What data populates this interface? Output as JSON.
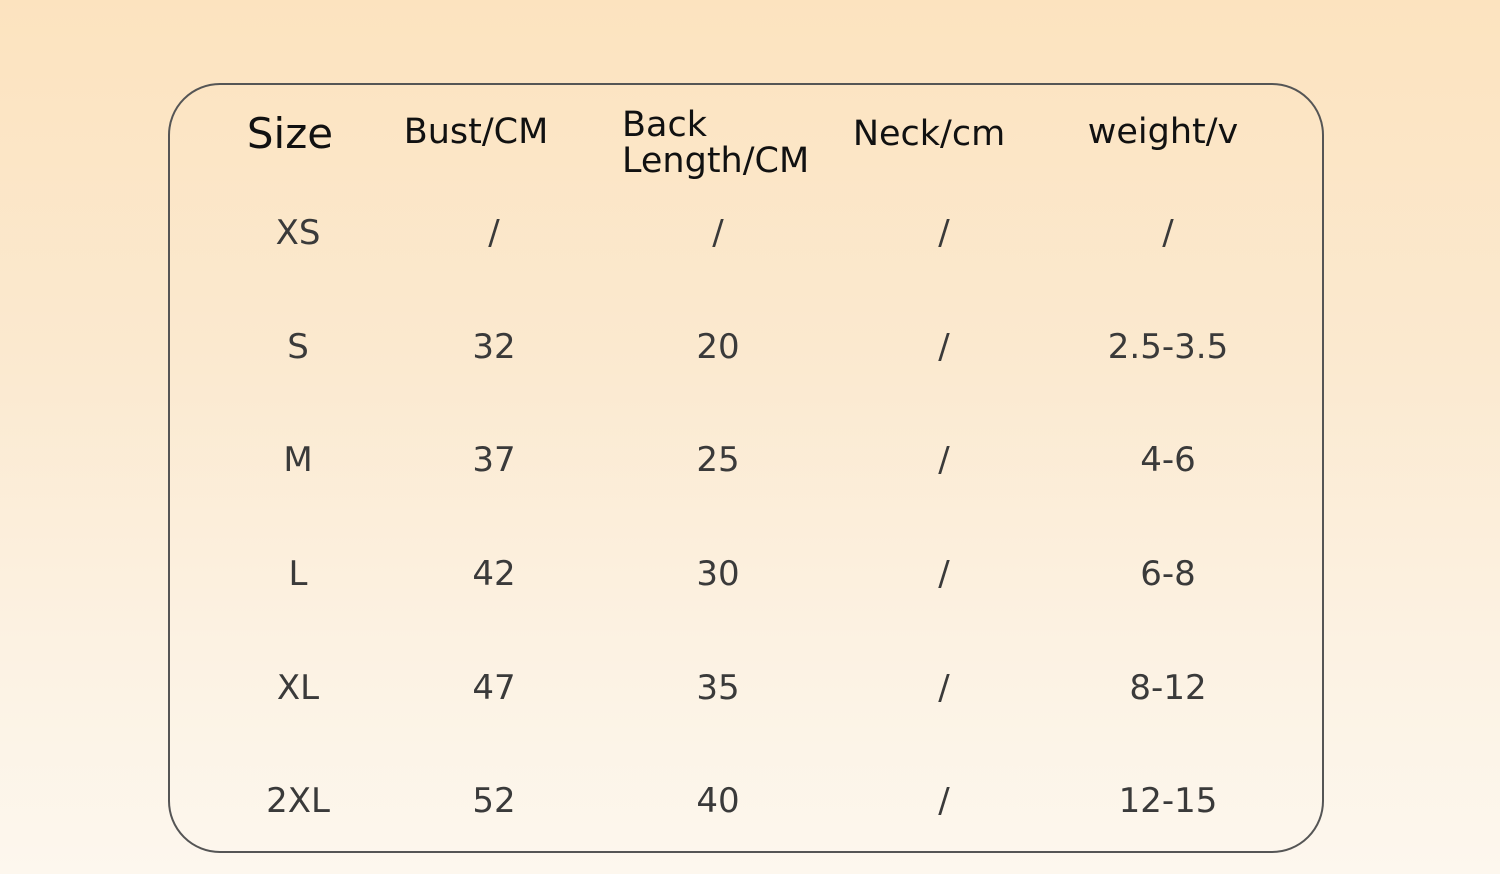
{
  "table": {
    "headers": [
      "Size",
      "Bust/CM",
      "Back Length/CM",
      "Neck/cm",
      "weight/v"
    ],
    "rows": [
      [
        "XS",
        "/",
        "/",
        "/",
        "/"
      ],
      [
        "S",
        "32",
        "20",
        "/",
        "2.5-3.5"
      ],
      [
        "M",
        "37",
        "25",
        "/",
        "4-6"
      ],
      [
        "L",
        "42",
        "30",
        "/",
        "6-8"
      ],
      [
        "XL",
        "47",
        "35",
        "/",
        "8-12"
      ],
      [
        "2XL",
        "52",
        "40",
        "/",
        "12-15"
      ]
    ]
  }
}
